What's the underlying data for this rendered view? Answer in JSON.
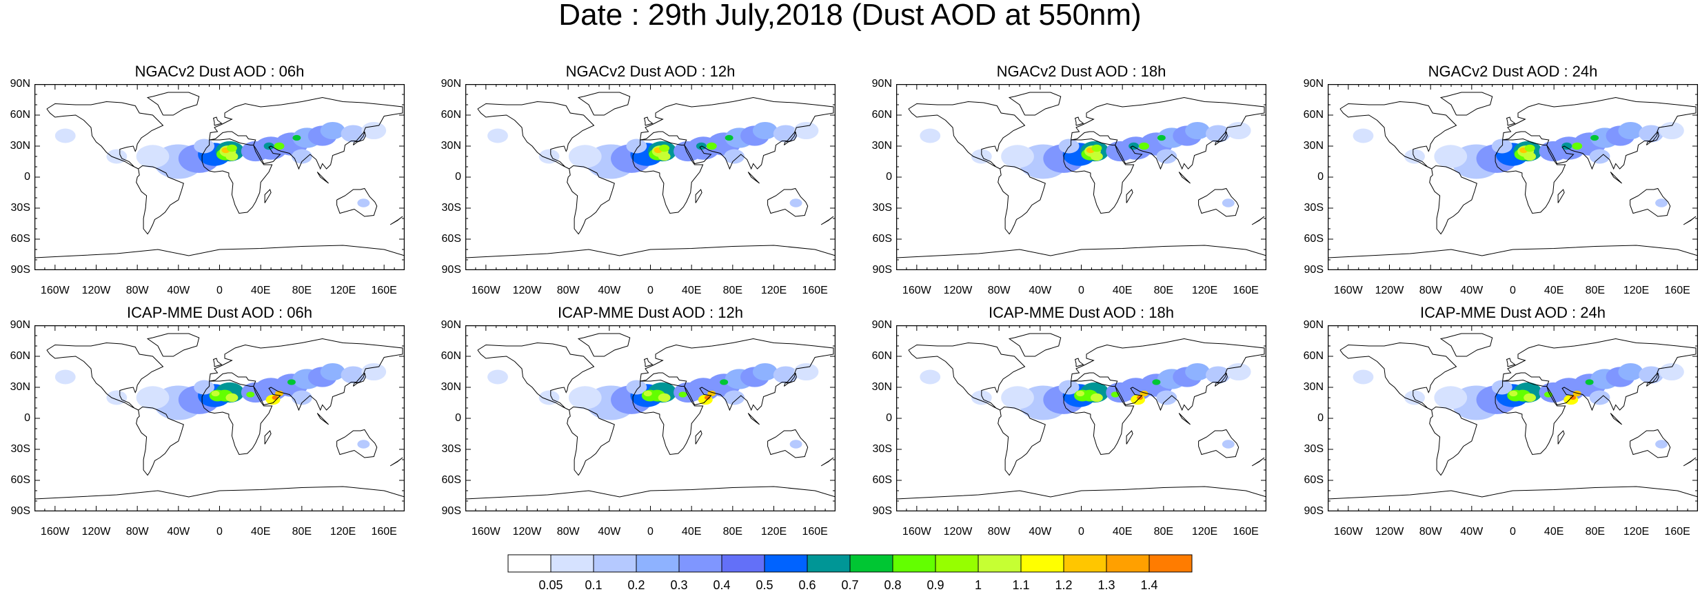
{
  "title": "Date : 29th July,2018 (Dust AOD at 550nm)",
  "lat_labels": [
    "90N",
    "60N",
    "30N",
    "0",
    "30S",
    "60S",
    "90S"
  ],
  "lon_labels": [
    "160W",
    "120W",
    "80W",
    "40W",
    "0",
    "40E",
    "80E",
    "120E",
    "160E"
  ],
  "lon_values": [
    -160,
    -120,
    -80,
    -40,
    0,
    40,
    80,
    120,
    160
  ],
  "lat_values": [
    90,
    60,
    30,
    0,
    -30,
    -60,
    -90
  ],
  "panels": [
    {
      "title": "NGACv2 Dust AOD : 06h",
      "model": "NGACv2"
    },
    {
      "title": "NGACv2 Dust AOD : 12h",
      "model": "NGACv2"
    },
    {
      "title": "NGACv2 Dust AOD : 18h",
      "model": "NGACv2"
    },
    {
      "title": "NGACv2 Dust AOD : 24h",
      "model": "NGACv2"
    },
    {
      "title": "ICAP-MME Dust AOD : 06h",
      "model": "ICAP-MME"
    },
    {
      "title": "ICAP-MME Dust AOD : 12h",
      "model": "ICAP-MME"
    },
    {
      "title": "ICAP-MME Dust AOD : 18h",
      "model": "ICAP-MME"
    },
    {
      "title": "ICAP-MME Dust AOD : 24h",
      "model": "ICAP-MME"
    }
  ],
  "colorbar": {
    "labels": [
      "0.05",
      "0.1",
      "0.2",
      "0.3",
      "0.4",
      "0.5",
      "0.6",
      "0.7",
      "0.8",
      "0.9",
      "1",
      "1.1",
      "1.2",
      "1.3",
      "1.4"
    ],
    "colors": [
      "#ffffff",
      "#d6e2ff",
      "#b5c9ff",
      "#8eb2ff",
      "#7f96ff",
      "#6370f8",
      "#0063ff",
      "#009696",
      "#00c633",
      "#63ff00",
      "#96ff00",
      "#c6ff33",
      "#ffff00",
      "#ffc600",
      "#ffa000",
      "#ff7c00",
      "#ff1900"
    ]
  }
}
